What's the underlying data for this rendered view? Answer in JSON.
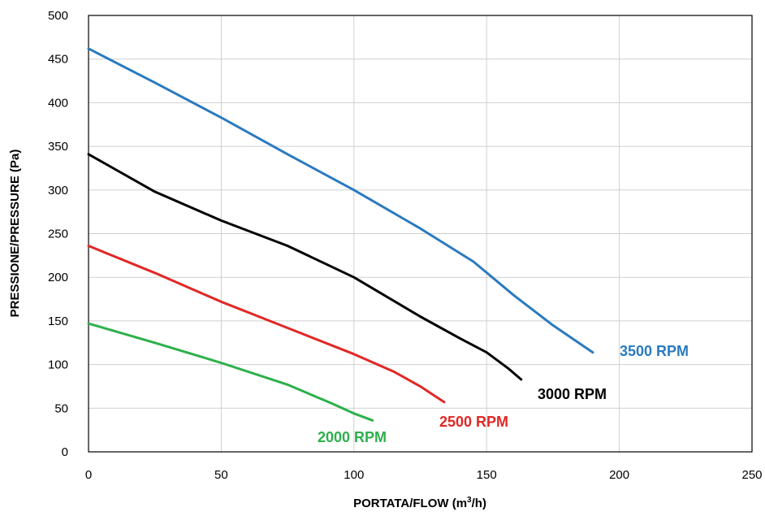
{
  "chart_data": {
    "type": "line",
    "xlabel_main": "PORTATA/FLOW (m",
    "xlabel_sup": "3",
    "xlabel_end": "/h)",
    "ylabel": "PRESSIONE/PRESSURE (Pa)",
    "xlim": [
      0,
      250
    ],
    "ylim": [
      0,
      500
    ],
    "x_ticks": [
      0,
      50,
      100,
      150,
      200,
      250
    ],
    "y_ticks": [
      0,
      50,
      100,
      150,
      200,
      250,
      300,
      350,
      400,
      450,
      500
    ],
    "grid": true,
    "series": [
      {
        "name": "3500 RPM",
        "color": "#2a7abf",
        "points": [
          [
            0,
            462
          ],
          [
            25,
            423
          ],
          [
            50,
            383
          ],
          [
            75,
            341
          ],
          [
            100,
            300
          ],
          [
            125,
            256
          ],
          [
            145,
            218
          ],
          [
            160,
            180
          ],
          [
            175,
            145
          ],
          [
            190,
            114
          ]
        ]
      },
      {
        "name": "3000 RPM",
        "color": "#000000",
        "points": [
          [
            0,
            341
          ],
          [
            25,
            298
          ],
          [
            50,
            265
          ],
          [
            75,
            236
          ],
          [
            100,
            200
          ],
          [
            125,
            155
          ],
          [
            140,
            130
          ],
          [
            150,
            114
          ],
          [
            158,
            96
          ],
          [
            163,
            83
          ]
        ]
      },
      {
        "name": "2500 RPM",
        "color": "#e02826",
        "points": [
          [
            0,
            236
          ],
          [
            25,
            205
          ],
          [
            50,
            172
          ],
          [
            75,
            142
          ],
          [
            100,
            112
          ],
          [
            115,
            92
          ],
          [
            125,
            75
          ],
          [
            134,
            57
          ]
        ]
      },
      {
        "name": "2000 RPM",
        "color": "#2db04b",
        "points": [
          [
            0,
            147
          ],
          [
            25,
            125
          ],
          [
            50,
            102
          ],
          [
            75,
            77
          ],
          [
            92,
            55
          ],
          [
            100,
            44
          ],
          [
            107,
            36
          ]
        ]
      }
    ]
  }
}
